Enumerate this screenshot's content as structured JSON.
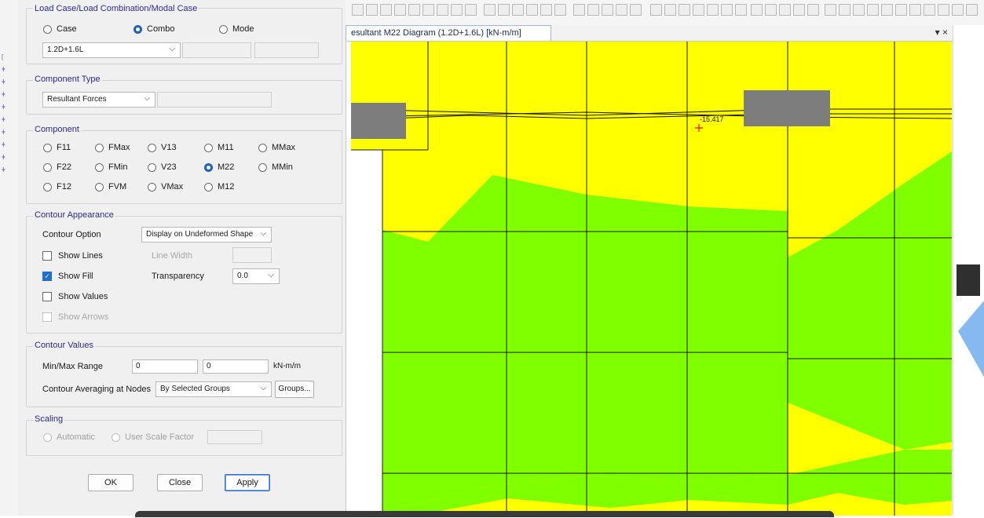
{
  "window": {
    "tab_title": "esultant M22 Diagram   (1.2D+1.6L)  [kN-m/m]",
    "tab_controls": "▾ ×"
  },
  "dialog": {
    "load_case_group": {
      "title": "Load Case/Load Combination/Modal Case",
      "options": [
        "Case",
        "Combo",
        "Mode"
      ],
      "selected": "Combo",
      "combo_value": "1.2D+1.6L"
    },
    "component_type": {
      "title": "Component Type",
      "value": "Resultant Forces"
    },
    "component": {
      "title": "Component",
      "row1": [
        "F11",
        "FMax",
        "V13",
        "M11",
        "MMax"
      ],
      "row2": [
        "F22",
        "FMin",
        "V23",
        "M22",
        "MMin"
      ],
      "row3": [
        "F12",
        "FVM",
        "VMax",
        "M12"
      ],
      "selected": "M22"
    },
    "contour_appearance": {
      "title": "Contour Appearance",
      "contour_option_label": "Contour Option",
      "contour_option_value": "Display on Undeformed Shape",
      "show_lines": "Show Lines",
      "line_width": "Line Width",
      "show_fill": "Show Fill",
      "transparency": "Transparency",
      "transparency_value": "0.0",
      "show_values": "Show Values",
      "show_arrows": "Show Arrows"
    },
    "contour_values": {
      "title": "Contour Values",
      "min_max_label": "Min/Max Range",
      "min": "0",
      "max": "0",
      "units": "kN-m/m",
      "averaging_label": "Contour Averaging at Nodes",
      "averaging_value": "By Selected Groups",
      "groups_button": "Groups..."
    },
    "scaling": {
      "title": "Scaling",
      "automatic": "Automatic",
      "user_scale": "User Scale Factor"
    },
    "buttons": {
      "ok": "OK",
      "close": "Close",
      "apply": "Apply"
    }
  },
  "diagram": {
    "point_label": "-15.417",
    "colors": {
      "yellow": "#ffff00",
      "green": "#80ff00",
      "gray": "#7d7d7d",
      "grid": "#1a1a1a",
      "marker": "#ff0000"
    }
  }
}
